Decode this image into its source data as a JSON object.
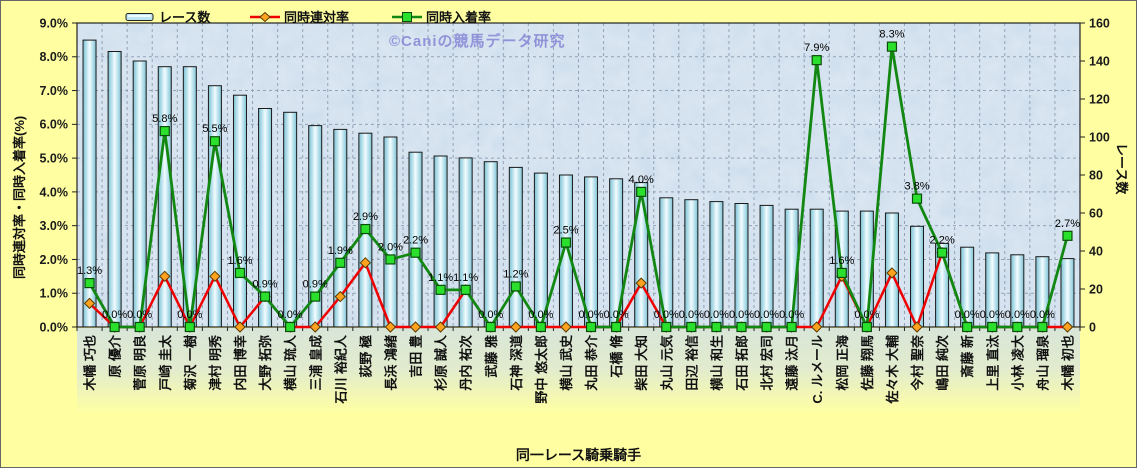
{
  "watermark": "©Caniの競馬データ研究",
  "legend": [
    {
      "label": "レース数",
      "swatch": "bar-swatch"
    },
    {
      "label": "同時連対率",
      "swatch": "red-line-diamond-swatch"
    },
    {
      "label": "同時入着率",
      "swatch": "green-line-square-swatch"
    }
  ],
  "axes": {
    "left_title": "同時連対率・同時入着率(%)",
    "right_title": "レース数",
    "x_title": "同一レース騎乗騎手",
    "left_ticks": [
      "0.0%",
      "1.0%",
      "2.0%",
      "3.0%",
      "4.0%",
      "5.0%",
      "6.0%",
      "7.0%",
      "8.0%",
      "9.0%"
    ],
    "right_ticks": [
      "0",
      "20",
      "40",
      "60",
      "80",
      "100",
      "120",
      "140",
      "160"
    ],
    "left_max": 9.0,
    "right_max": 160,
    "grid": true
  },
  "colors": {
    "background": "#ffffa2",
    "plot_bg": "#c7d9ea",
    "grid": "#93a3b6",
    "bar_fill": "#aedae6",
    "bar_edge": "#1a1a1a",
    "red_line": "#f00000",
    "red_marker": "#ffa21f",
    "green_line": "#128812",
    "green_marker": "#2be02c",
    "watermark": "#8a8ad6"
  },
  "chart_data": {
    "type": "bar",
    "subtype": "combo-bar-and-lines",
    "title": "",
    "xlabel": "同一レース騎乗騎手",
    "ylabel_left": "同時連対率・同時入着率(%)",
    "ylabel_right": "レース数",
    "ylim_left": [
      0,
      9
    ],
    "ylim_right": [
      0,
      160
    ],
    "categories": [
      "木幡 巧也",
      "原 優介",
      "菅原 明良",
      "戸崎 圭太",
      "菊沢 一樹",
      "津村 明秀",
      "内田 博幸",
      "大野 拓弥",
      "横山 琉人",
      "三浦 皇成",
      "石川 裕紀人",
      "荻野 極",
      "長浜 鴻緒",
      "吉田 豊",
      "杉原 誠人",
      "丹内 祐次",
      "武藤 雅",
      "石神 深道",
      "野中 悠太郎",
      "横山 武史",
      "丸田 恭介",
      "石橋 脩",
      "柴田 大知",
      "丸山 元気",
      "田辺 裕信",
      "横山 和生",
      "石田 拓郎",
      "北村 宏司",
      "遠藤 汰月",
      "C. ルメール",
      "松岡 正海",
      "佐藤 翔馬",
      "佐々木 大輔",
      "今村 聖奈",
      "嶋田 純次",
      "斎藤 新",
      "上里 直汰",
      "小林 凌大",
      "舟山 瑠泉",
      "木幡 初也"
    ],
    "series": [
      {
        "name": "レース数",
        "type": "bar",
        "axis": "right",
        "values": [
          151,
          145,
          140,
          137,
          137,
          127,
          122,
          115,
          113,
          106,
          104,
          102,
          100,
          92,
          90,
          89,
          87,
          84,
          81,
          80,
          79,
          78,
          76,
          68,
          67,
          66,
          65,
          64,
          62,
          62,
          61,
          61,
          60,
          53,
          44,
          42,
          39,
          38,
          37,
          36
        ]
      },
      {
        "name": "同時連対率",
        "type": "line",
        "marker": "diamond",
        "axis": "left",
        "unit": "%",
        "values": [
          0.7,
          0,
          0,
          1.5,
          0,
          1.5,
          0,
          0.9,
          0,
          0,
          0.9,
          1.9,
          0,
          0,
          0,
          1.1,
          0,
          0,
          0,
          0,
          0,
          0,
          1.3,
          0,
          0,
          0,
          0,
          0,
          0,
          0,
          1.5,
          0,
          1.6,
          0,
          2.2,
          0,
          0,
          0,
          0,
          0
        ]
      },
      {
        "name": "同時入着率",
        "type": "line",
        "marker": "square",
        "axis": "left",
        "unit": "%",
        "values": [
          1.3,
          0,
          0,
          5.8,
          0,
          5.5,
          1.6,
          0.9,
          0,
          0.9,
          1.9,
          2.9,
          2.0,
          2.2,
          1.1,
          1.1,
          0,
          1.2,
          0,
          2.5,
          0,
          0,
          4.0,
          0,
          0,
          0,
          0,
          0,
          0,
          7.9,
          1.6,
          0,
          8.3,
          3.8,
          2.2,
          0,
          0,
          0,
          0,
          2.7
        ],
        "point_labels": [
          "1.3%",
          "0.0%",
          "0.0%",
          "5.8%",
          "0.0%",
          "5.5%",
          "1.6%",
          "0.9%",
          "0.0%",
          "0.9%",
          "1.9%",
          "2.9%",
          "2.0%",
          "2.2%",
          "1.1%",
          "1.1%",
          "0.0%",
          "1.2%",
          "0.0%",
          "2.5%",
          "0.0%",
          "0.0%",
          "4.0%",
          "0.0%",
          "0.0%",
          "0.0%",
          "0.0%",
          "0.0%",
          "0.0%",
          "7.9%",
          "1.6%",
          "0.0%",
          "8.3%",
          "3.8%",
          "2.2%",
          "0.0%",
          "0.0%",
          "0.0%",
          "0.0%",
          "2.7%"
        ]
      }
    ],
    "legend_position": "top"
  }
}
